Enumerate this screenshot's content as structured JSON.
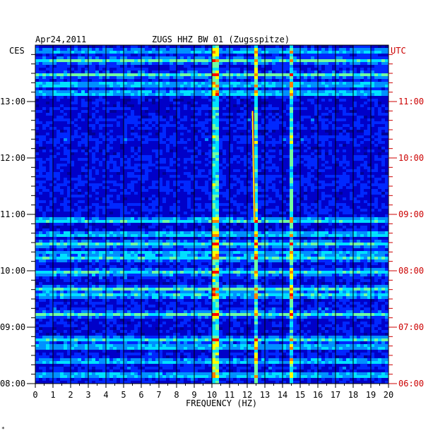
{
  "chart_data": {
    "type": "heatmap",
    "title_date": "Apr24,2011",
    "title_station": "ZUGS HHZ BW 01 (Zugsspitze)",
    "left_axis_label": "CES",
    "right_axis_label": "UTC",
    "xlabel": "FREQUENCY (HZ)",
    "x_ticks": [
      "0",
      "1",
      "2",
      "3",
      "4",
      "5",
      "6",
      "7",
      "8",
      "9",
      "10",
      "11",
      "12",
      "13",
      "14",
      "15",
      "16",
      "17",
      "18",
      "19",
      "20"
    ],
    "xlim": [
      0,
      20
    ],
    "left_time_ticks": [
      "08:00",
      "09:00",
      "10:00",
      "11:00",
      "12:00",
      "13:00"
    ],
    "right_time_ticks": [
      "06:00",
      "07:00",
      "08:00",
      "09:00",
      "10:00",
      "11:00"
    ],
    "time_range_ces": [
      "08:00",
      "14:00"
    ],
    "colormap": [
      "#00007a",
      "#0000c8",
      "#0028ff",
      "#0090ff",
      "#00e0ff",
      "#70ffa0",
      "#ffff00",
      "#ff8000",
      "#ff0000"
    ],
    "background_color": "#000096",
    "right_axis_color": "#cc0000",
    "persistent_spectral_lines_hz": [
      10.0,
      10.2,
      12.4,
      14.4
    ],
    "drifting_line": {
      "start_hz": 12.4,
      "start_time_ces": "10:52",
      "end_hz": 12.3,
      "end_time_ces": "12:50"
    },
    "broadband_noise_bands_ces": [
      "08:10",
      "08:25",
      "08:40",
      "08:48",
      "09:15",
      "09:35",
      "09:42",
      "10:00",
      "10:15",
      "10:20",
      "10:30",
      "10:40",
      "10:55",
      "13:10",
      "13:20",
      "13:30",
      "13:45",
      "13:55"
    ]
  },
  "footer_mark": "*"
}
